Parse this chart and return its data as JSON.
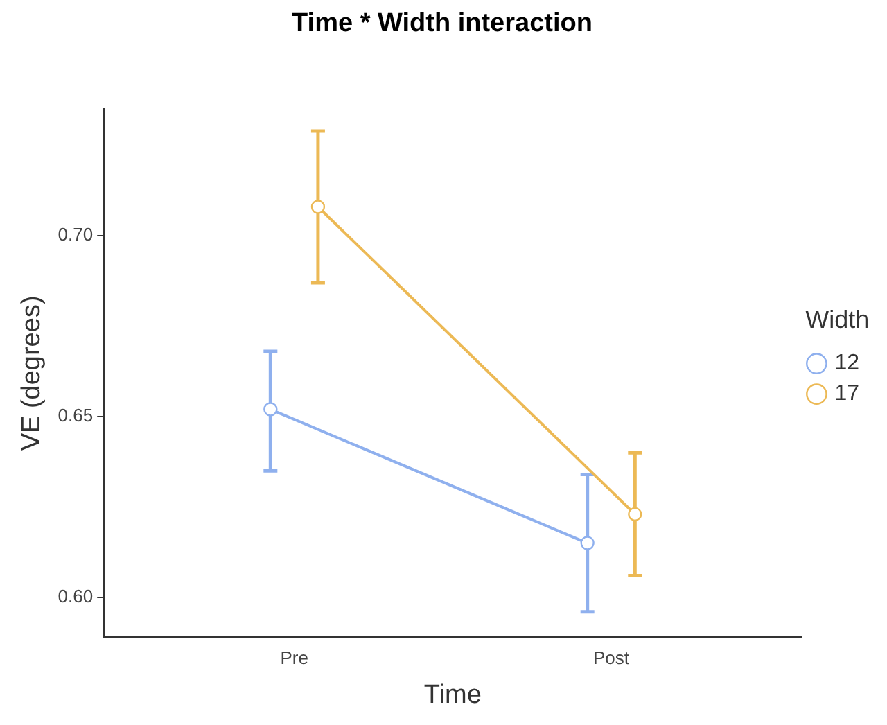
{
  "chart_data": {
    "type": "line",
    "title": "Time * Width interaction",
    "xlabel": "Time",
    "ylabel": "VE (degrees)",
    "legend_title": "Width",
    "categories": [
      "Pre",
      "Post"
    ],
    "series": [
      {
        "name": "12",
        "color": "#8fb0ee",
        "values": [
          0.652,
          0.615
        ],
        "errors": [
          [
            0.635,
            0.668
          ],
          [
            0.596,
            0.634
          ]
        ]
      },
      {
        "name": "17",
        "color": "#ecb955",
        "values": [
          0.708,
          0.623
        ],
        "errors": [
          [
            0.687,
            0.729
          ],
          [
            0.606,
            0.64
          ]
        ]
      }
    ],
    "ylim": [
      0.589,
      0.735
    ],
    "yticks": [
      {
        "value": 0.6,
        "label": "0.60"
      },
      0.65,
      {
        "value": 0.7,
        "label": "0.70"
      }
    ],
    "grid": false,
    "legend": "right",
    "marker": "circle",
    "line_style": "solid"
  }
}
